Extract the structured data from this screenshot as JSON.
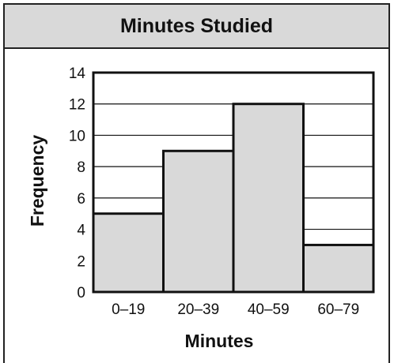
{
  "chart_data": {
    "type": "bar",
    "title": "Minutes Studied",
    "xlabel": "Minutes",
    "ylabel": "Frequency",
    "categories": [
      "0–19",
      "20–39",
      "40–59",
      "60–79"
    ],
    "values": [
      5,
      9,
      12,
      3
    ],
    "ylim": [
      0,
      14
    ],
    "yticks": [
      0,
      2,
      4,
      6,
      8,
      10,
      12,
      14
    ],
    "grid": true,
    "colors": {
      "bar_fill": "#d9d9d9",
      "bar_stroke": "#111111",
      "grid": "#111111"
    }
  }
}
